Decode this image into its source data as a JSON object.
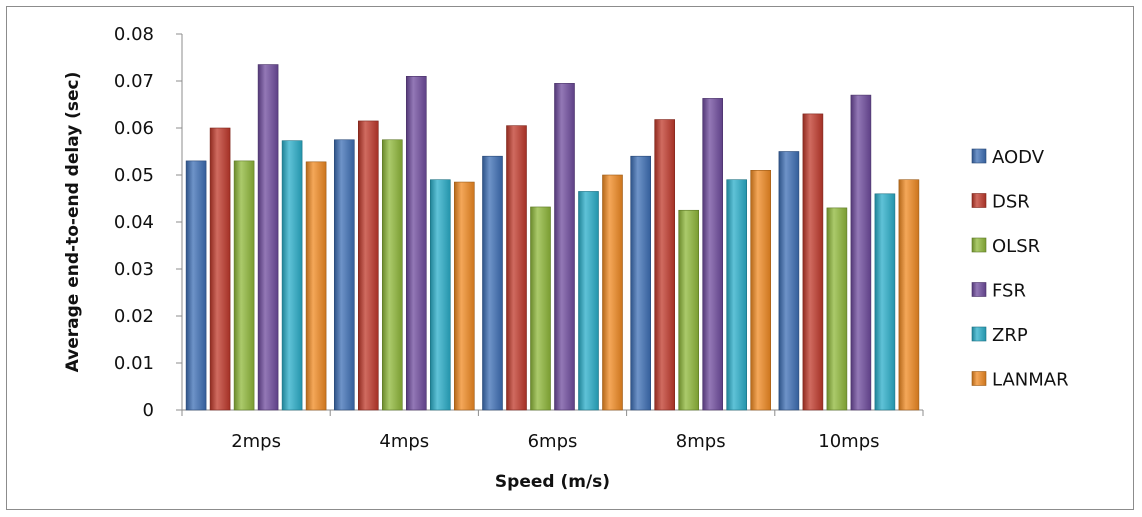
{
  "chart_data": {
    "type": "bar",
    "title": "",
    "xlabel": "Speed (m/s)",
    "ylabel": "Average end-to-end delay (sec)",
    "categories": [
      "2mps",
      "4mps",
      "6mps",
      "8mps",
      "10mps"
    ],
    "ylim": [
      0,
      0.08
    ],
    "yticks": [
      "0",
      "0.01",
      "0.02",
      "0.03",
      "0.04",
      "0.05",
      "0.06",
      "0.07",
      "0.08"
    ],
    "grid": false,
    "legend_position": "right",
    "series": [
      {
        "name": "AODV",
        "color": "#3d6fb5",
        "values": [
          0.053,
          0.0575,
          0.054,
          0.054,
          0.055
        ]
      },
      {
        "name": "DSR",
        "color": "#c0392b",
        "values": [
          0.06,
          0.0615,
          0.0605,
          0.0618,
          0.063
        ]
      },
      {
        "name": "OLSR",
        "color": "#8fb83a",
        "values": [
          0.053,
          0.0575,
          0.0432,
          0.0425,
          0.043
        ]
      },
      {
        "name": "FSR",
        "color": "#6f4b9e",
        "values": [
          0.0735,
          0.071,
          0.0695,
          0.0663,
          0.067
        ]
      },
      {
        "name": "ZRP",
        "color": "#2aaec9",
        "values": [
          0.0573,
          0.049,
          0.0465,
          0.049,
          0.046
        ]
      },
      {
        "name": "LANMAR",
        "color": "#f08a22",
        "values": [
          0.0528,
          0.0485,
          0.05,
          0.051,
          0.049
        ]
      }
    ]
  }
}
